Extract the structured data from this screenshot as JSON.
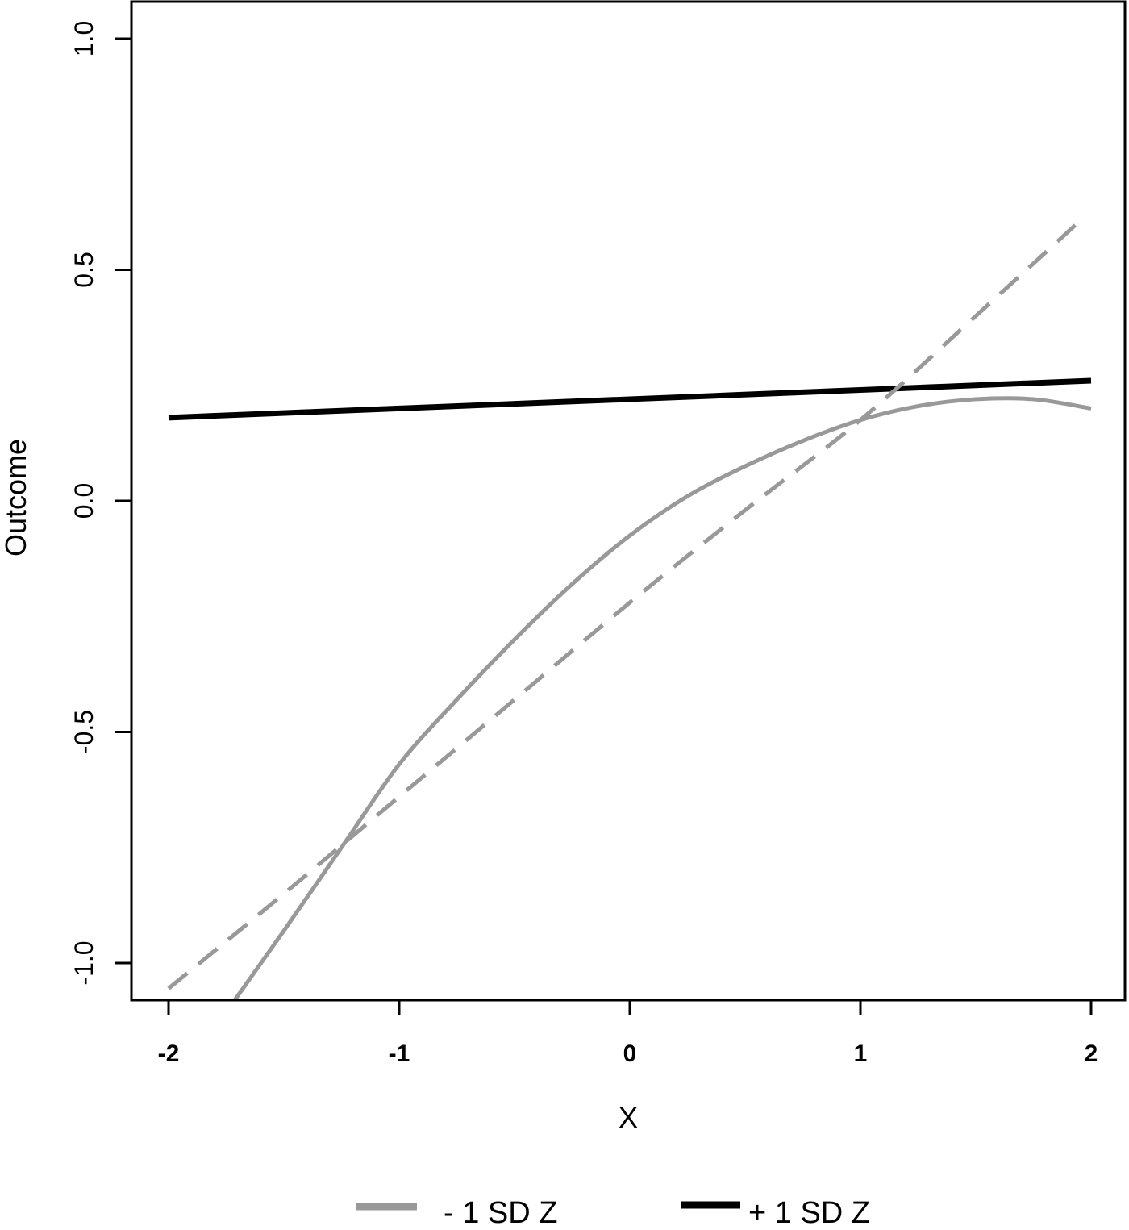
{
  "chart_data": {
    "type": "line",
    "title": "",
    "xlabel": "X",
    "ylabel": "Outcome",
    "xlim": [
      -2.16,
      2.15
    ],
    "ylim": [
      -1.085,
      1.08
    ],
    "x_ticks": [
      -2,
      -1,
      0,
      1,
      2
    ],
    "x_tick_labels": [
      "-2",
      "-1",
      "0",
      "1",
      "2"
    ],
    "y_ticks": [
      -1.0,
      -0.5,
      0.0,
      0.5,
      1.0
    ],
    "y_tick_labels": [
      "-1.0",
      "-0.5",
      "0.0",
      "0.5",
      "1.0"
    ],
    "grid": false,
    "legend_position": "bottom",
    "legend": [
      {
        "label": "- 1 SD Z",
        "color": "#999999",
        "style": "solid"
      },
      {
        "label": "+ 1 SD Z",
        "color": "#000000",
        "style": "solid"
      }
    ],
    "series": [
      {
        "name": "+ 1 SD Z",
        "color": "#000000",
        "style": "solid",
        "width": 7,
        "x": [
          -2.0,
          -1.0,
          0.0,
          1.0,
          2.0
        ],
        "y": [
          0.18,
          0.2,
          0.22,
          0.24,
          0.26
        ]
      },
      {
        "name": "- 1 SD Z",
        "color": "#999999",
        "style": "solid",
        "width": 5,
        "x": [
          -1.72,
          -1.5,
          -1.25,
          -1.0,
          -0.75,
          -0.5,
          -0.25,
          0.0,
          0.25,
          0.5,
          0.75,
          1.0,
          1.25,
          1.5,
          1.75,
          2.0
        ],
        "y": [
          -1.085,
          -0.93,
          -0.75,
          -0.57,
          -0.43,
          -0.3,
          -0.18,
          -0.075,
          0.01,
          0.075,
          0.13,
          0.175,
          0.205,
          0.22,
          0.22,
          0.2
        ]
      },
      {
        "name": "- 1 SD Z (dashed)",
        "color": "#999999",
        "style": "dashed",
        "width": 5,
        "x": [
          -2.0,
          -1.5,
          -1.0,
          -0.5,
          0.0,
          0.5,
          1.0,
          1.5,
          1.95
        ],
        "y": [
          -1.055,
          -0.85,
          -0.64,
          -0.43,
          -0.22,
          -0.02,
          0.175,
          0.4,
          0.605
        ]
      }
    ]
  }
}
